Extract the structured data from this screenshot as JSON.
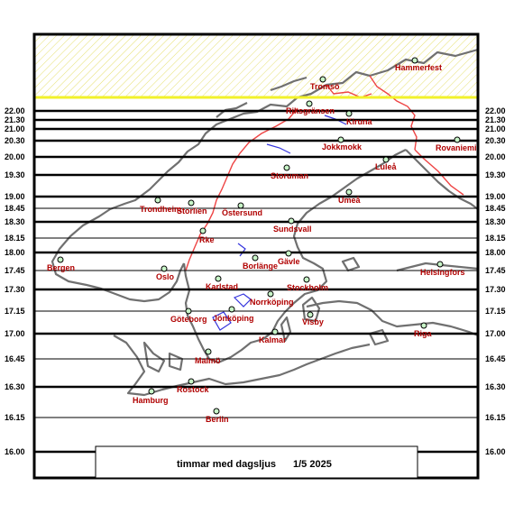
{
  "caption": {
    "title": "timmar med dagsljus",
    "date": "1/5 2025"
  },
  "colors": {
    "frame": "#000000",
    "land_outline": "#707070",
    "border_line": "#ee4444",
    "water": "#3333dd",
    "city_label": "#b00000",
    "city_marker_fill": "#c8f5c8",
    "midnight_sun_hatch": "#e6e070",
    "limit_line": "#f2f22a"
  },
  "scale_labels": [
    "22.00",
    "21.30",
    "21.00",
    "20.30",
    "20.00",
    "19.30",
    "19.00",
    "18.45",
    "18.30",
    "18.15",
    "18.00",
    "17.45",
    "17.30",
    "17.15",
    "17.00",
    "16.45",
    "16.30",
    "16.15",
    "16.00"
  ],
  "cities": [
    {
      "name": "Hammerfest"
    },
    {
      "name": "Tromsö"
    },
    {
      "name": "Riksgränsen"
    },
    {
      "name": "Kiruna"
    },
    {
      "name": "Jokkmokk"
    },
    {
      "name": "Rovaniemi"
    },
    {
      "name": "Luleå"
    },
    {
      "name": "Storuman"
    },
    {
      "name": "Umeå"
    },
    {
      "name": "Trondheim"
    },
    {
      "name": "Storlien"
    },
    {
      "name": "Östersund"
    },
    {
      "name": "Sundsvall"
    },
    {
      "name": "Rke"
    },
    {
      "name": "Bergen"
    },
    {
      "name": "Oslo"
    },
    {
      "name": "Borlänge"
    },
    {
      "name": "Gävle"
    },
    {
      "name": "Helsingfors"
    },
    {
      "name": "Karlstad"
    },
    {
      "name": "Stockholm"
    },
    {
      "name": "Norrköping"
    },
    {
      "name": "Göteborg"
    },
    {
      "name": "Jönköping"
    },
    {
      "name": "Visby"
    },
    {
      "name": "Riga"
    },
    {
      "name": "Kalmar"
    },
    {
      "name": "Malmö"
    },
    {
      "name": "Rostock"
    },
    {
      "name": "Hamburg"
    },
    {
      "name": "Berlin"
    }
  ]
}
